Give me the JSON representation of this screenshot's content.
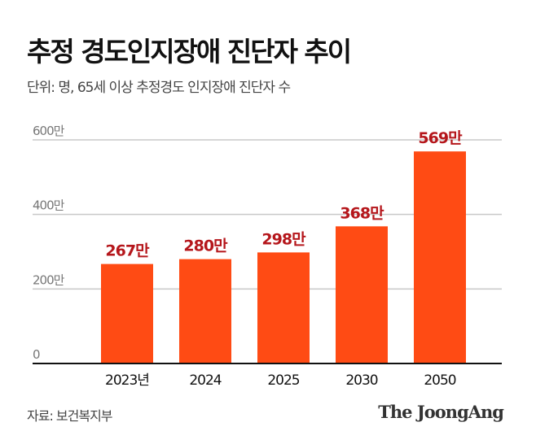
{
  "header": {
    "title": "추정 경도인지장애 진단자 추이",
    "subtitle": "단위: 명, 65세 이상 추정경도 인지장애 진단자 수"
  },
  "footer": {
    "source": "자료: 보건복지부",
    "logo": "The JoongAng"
  },
  "colors": {
    "bar": "#ff4b14",
    "label": "#b5161b",
    "grid": "#c8c8c8",
    "axis": "#111111"
  },
  "chart_data": {
    "type": "bar",
    "categories": [
      "2023년",
      "2024",
      "2025",
      "2030",
      "2050"
    ],
    "values": [
      267,
      280,
      298,
      368,
      569
    ],
    "data_labels": [
      "267만",
      "280만",
      "298만",
      "368만",
      "569만"
    ],
    "yticks": [
      0,
      200,
      400,
      600
    ],
    "ytick_labels": [
      "0",
      "200만",
      "400만",
      "600만"
    ],
    "ylim": [
      0,
      600
    ],
    "grid": true
  }
}
